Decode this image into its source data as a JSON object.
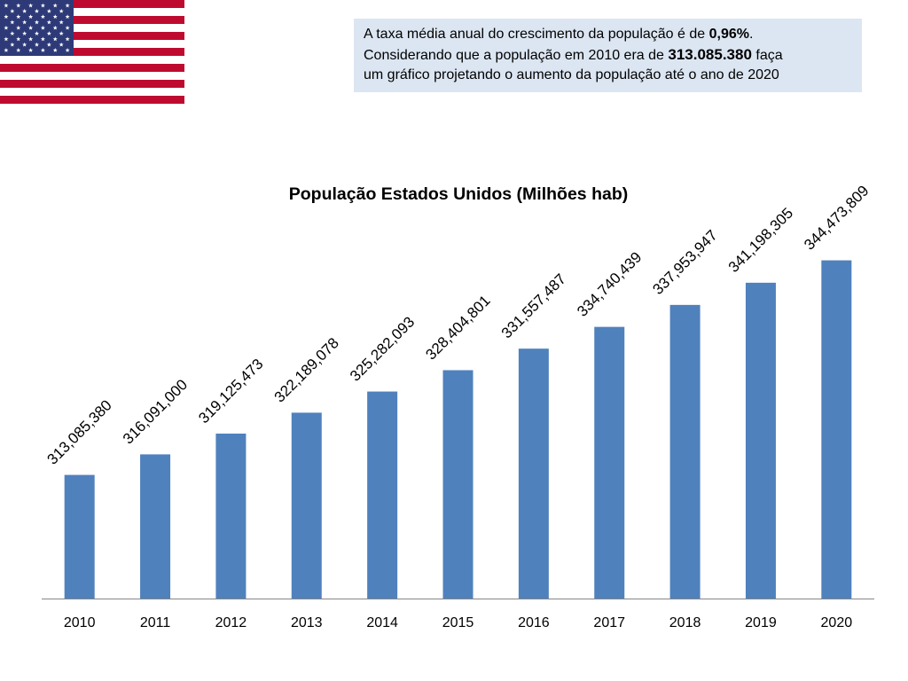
{
  "flag": {
    "icon": "us-flag-icon",
    "colors": {
      "red": "#bf0a30",
      "white": "#ffffff",
      "blue": "#2e3a78",
      "star": "#ffffff"
    }
  },
  "problem": {
    "line1": {
      "text": "A taxa média anual do crescimento da população é de ",
      "bold": "0,96%",
      "end": "."
    },
    "line2": {
      "text": "Considerando que a população em 2010 era de ",
      "bold": "313.085.380",
      "end": " faça"
    },
    "line3": {
      "text": "um gráfico projetando o aumento da população até o ano de 2020"
    }
  },
  "chart_data": {
    "type": "bar",
    "title": "População Estados Unidos (Milhões hab)",
    "categories": [
      "2010",
      "2011",
      "2012",
      "2013",
      "2014",
      "2015",
      "2016",
      "2017",
      "2018",
      "2019",
      "2020"
    ],
    "values": [
      313085380,
      316091000,
      319125473,
      322189078,
      325282093,
      328404801,
      331557487,
      334740439,
      337953947,
      341198305,
      344473809
    ],
    "data_labels": [
      "313,085,380",
      "316,091,000",
      "319,125,473",
      "322,189,078",
      "325,282,093",
      "328,404,801",
      "331,557,487",
      "334,740,439",
      "337,953,947",
      "341,198,305",
      "344,473,809"
    ],
    "ylim": [
      295000000,
      350000000
    ],
    "grid": false,
    "legend": "none",
    "colors": {
      "bar": "#4f81bd"
    }
  }
}
